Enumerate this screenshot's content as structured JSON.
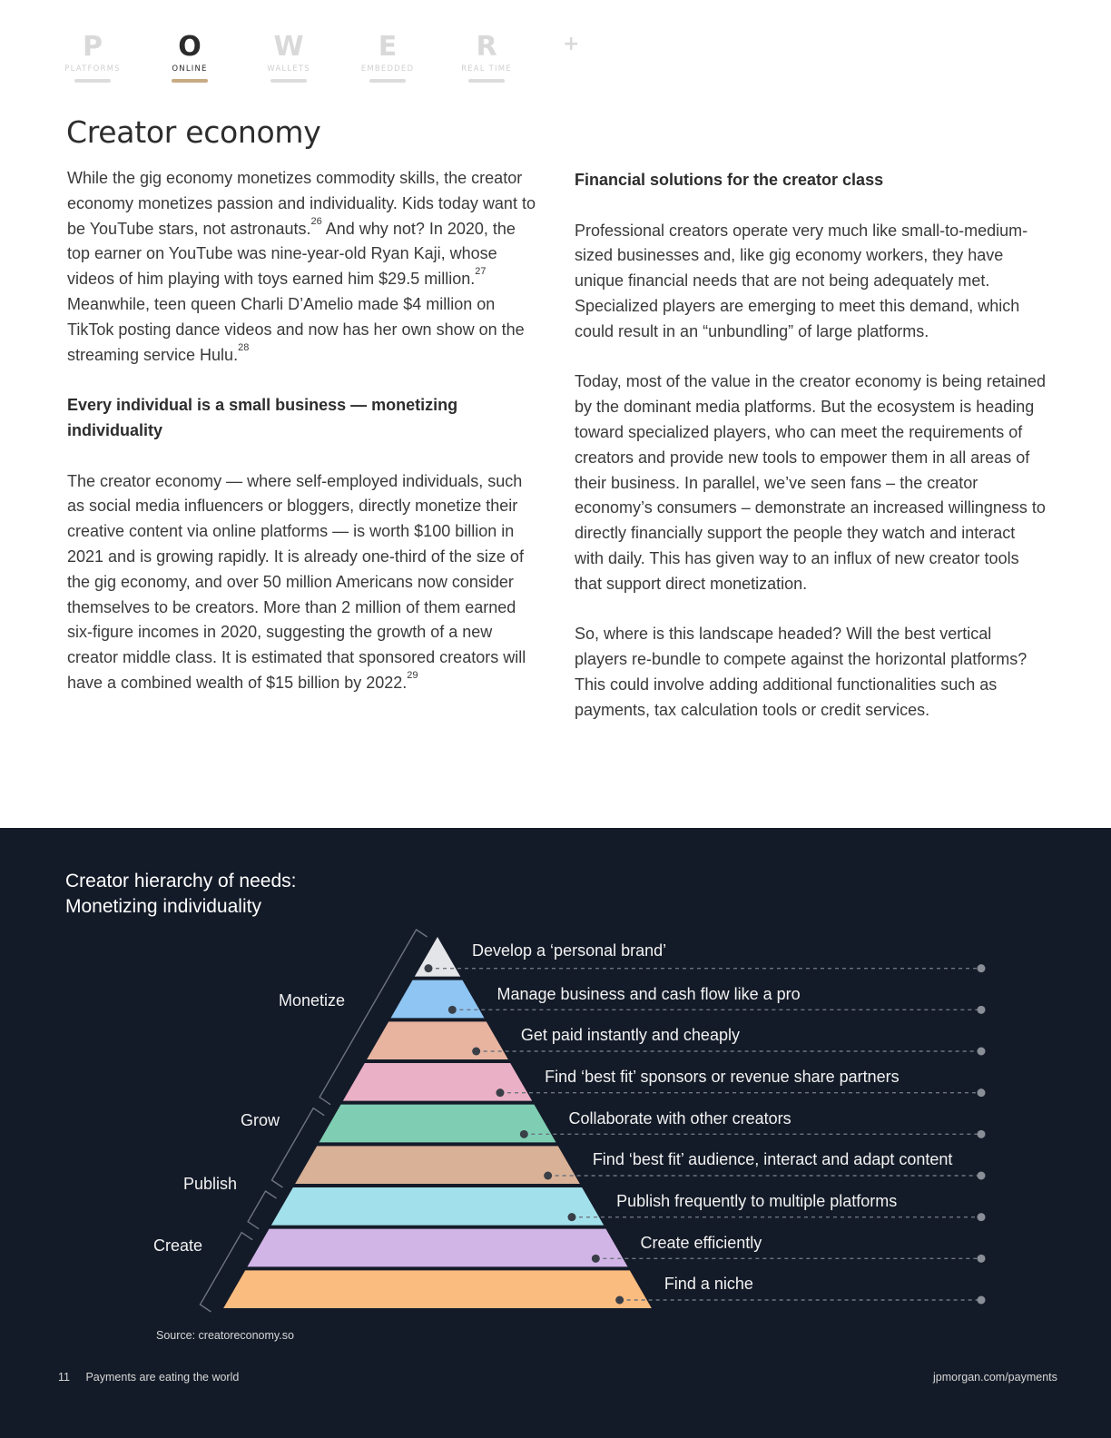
{
  "nav": {
    "tabs": [
      {
        "letter": "P",
        "label": "PLATFORMS"
      },
      {
        "letter": "O",
        "label": "ONLINE"
      },
      {
        "letter": "W",
        "label": "WALLETS"
      },
      {
        "letter": "E",
        "label": "EMBEDDED"
      },
      {
        "letter": "R",
        "label": "REAL TIME"
      }
    ],
    "plus": "+",
    "active_index": 1
  },
  "page_title": "Creator economy",
  "left_column": {
    "p1_a": "While the gig economy monetizes commodity skills, the creator economy monetizes passion and individuality. Kids today want to be YouTube stars, not astronauts.",
    "p1_sup1": "26",
    "p1_b": " And why not? In 2020, the top earner on YouTube was nine-year-old Ryan Kaji, whose videos of him playing with toys earned him $29.5 million.",
    "p1_sup2": "27",
    "p1_c": " Meanwhile, teen queen Charli D’Amelio made $4 million on TikTok posting dance videos and now has her own show on the streaming service Hulu.",
    "p1_sup3": "28",
    "heading": "Every individual is a small business — monetizing individuality",
    "p2": "The creator economy — where self-employed individuals, such as social media influencers or bloggers, directly monetize their creative content via online platforms — is worth $100 billion in 2021 and is growing rapidly. It is already one-third of the size of the gig economy, and over 50 million Americans now consider themselves to be creators. More than 2 million of them earned six-figure incomes in 2020, suggesting the growth of a new creator middle class. It is estimated that sponsored creators will have a combined wealth of $15 billion by 2022.",
    "p2_sup": "29"
  },
  "right_column": {
    "heading": "Financial solutions for the creator class",
    "p1": "Professional creators operate very much like small-to-medium-sized businesses and, like gig economy workers, they have unique financial needs that are not being adequately met. Specialized players are emerging to meet this demand, which could result in an “unbundling” of large platforms.",
    "p2": "Today, most of the value in the creator economy is being retained by the dominant media platforms. But the ecosystem is heading toward specialized players, who can meet the requirements of creators and provide new tools to empower them in all areas of their business. In parallel, we’ve seen fans – the creator economy’s consumers – demonstrate an increased willingness to directly financially support the people they watch and interact with daily. This has given way to an influx of new creator tools that support direct monetization.",
    "p3": "So, where is this landscape headed? Will the best vertical players re-bundle to compete against the horizontal platforms? This could involve adding additional functionalities such as payments, tax calculation tools or credit services."
  },
  "figure": {
    "title_line1": "Creator hierarchy of needs:",
    "title_line2": "Monetizing individuality",
    "layers": [
      {
        "label": "Develop a ‘personal brand’",
        "color": "#e3e5e8"
      },
      {
        "label": "Manage business and cash flow like a pro",
        "color": "#8ec5f3"
      },
      {
        "label": "Get paid instantly and cheaply",
        "color": "#e8b4a0"
      },
      {
        "label": "Find ‘best fit’ sponsors or revenue share partners",
        "color": "#eab0c6"
      },
      {
        "label": "Collaborate with other creators",
        "color": "#7fceb4"
      },
      {
        "label": "Find ‘best fit’ audience, interact and adapt content",
        "color": "#d8b196"
      },
      {
        "label": "Publish frequently to multiple platforms",
        "color": "#a2e1eb"
      },
      {
        "label": "Create efficiently",
        "color": "#d2b5e7"
      },
      {
        "label": "Find a niche",
        "color": "#fbbc7f"
      }
    ],
    "groups": [
      "Monetize",
      "Grow",
      "Publish",
      "Create"
    ],
    "source": "Source: creatoreconomy.so"
  },
  "footer": {
    "page_number": "11",
    "doc_title": "Payments are eating the world",
    "url": "jpmorgan.com/payments"
  }
}
